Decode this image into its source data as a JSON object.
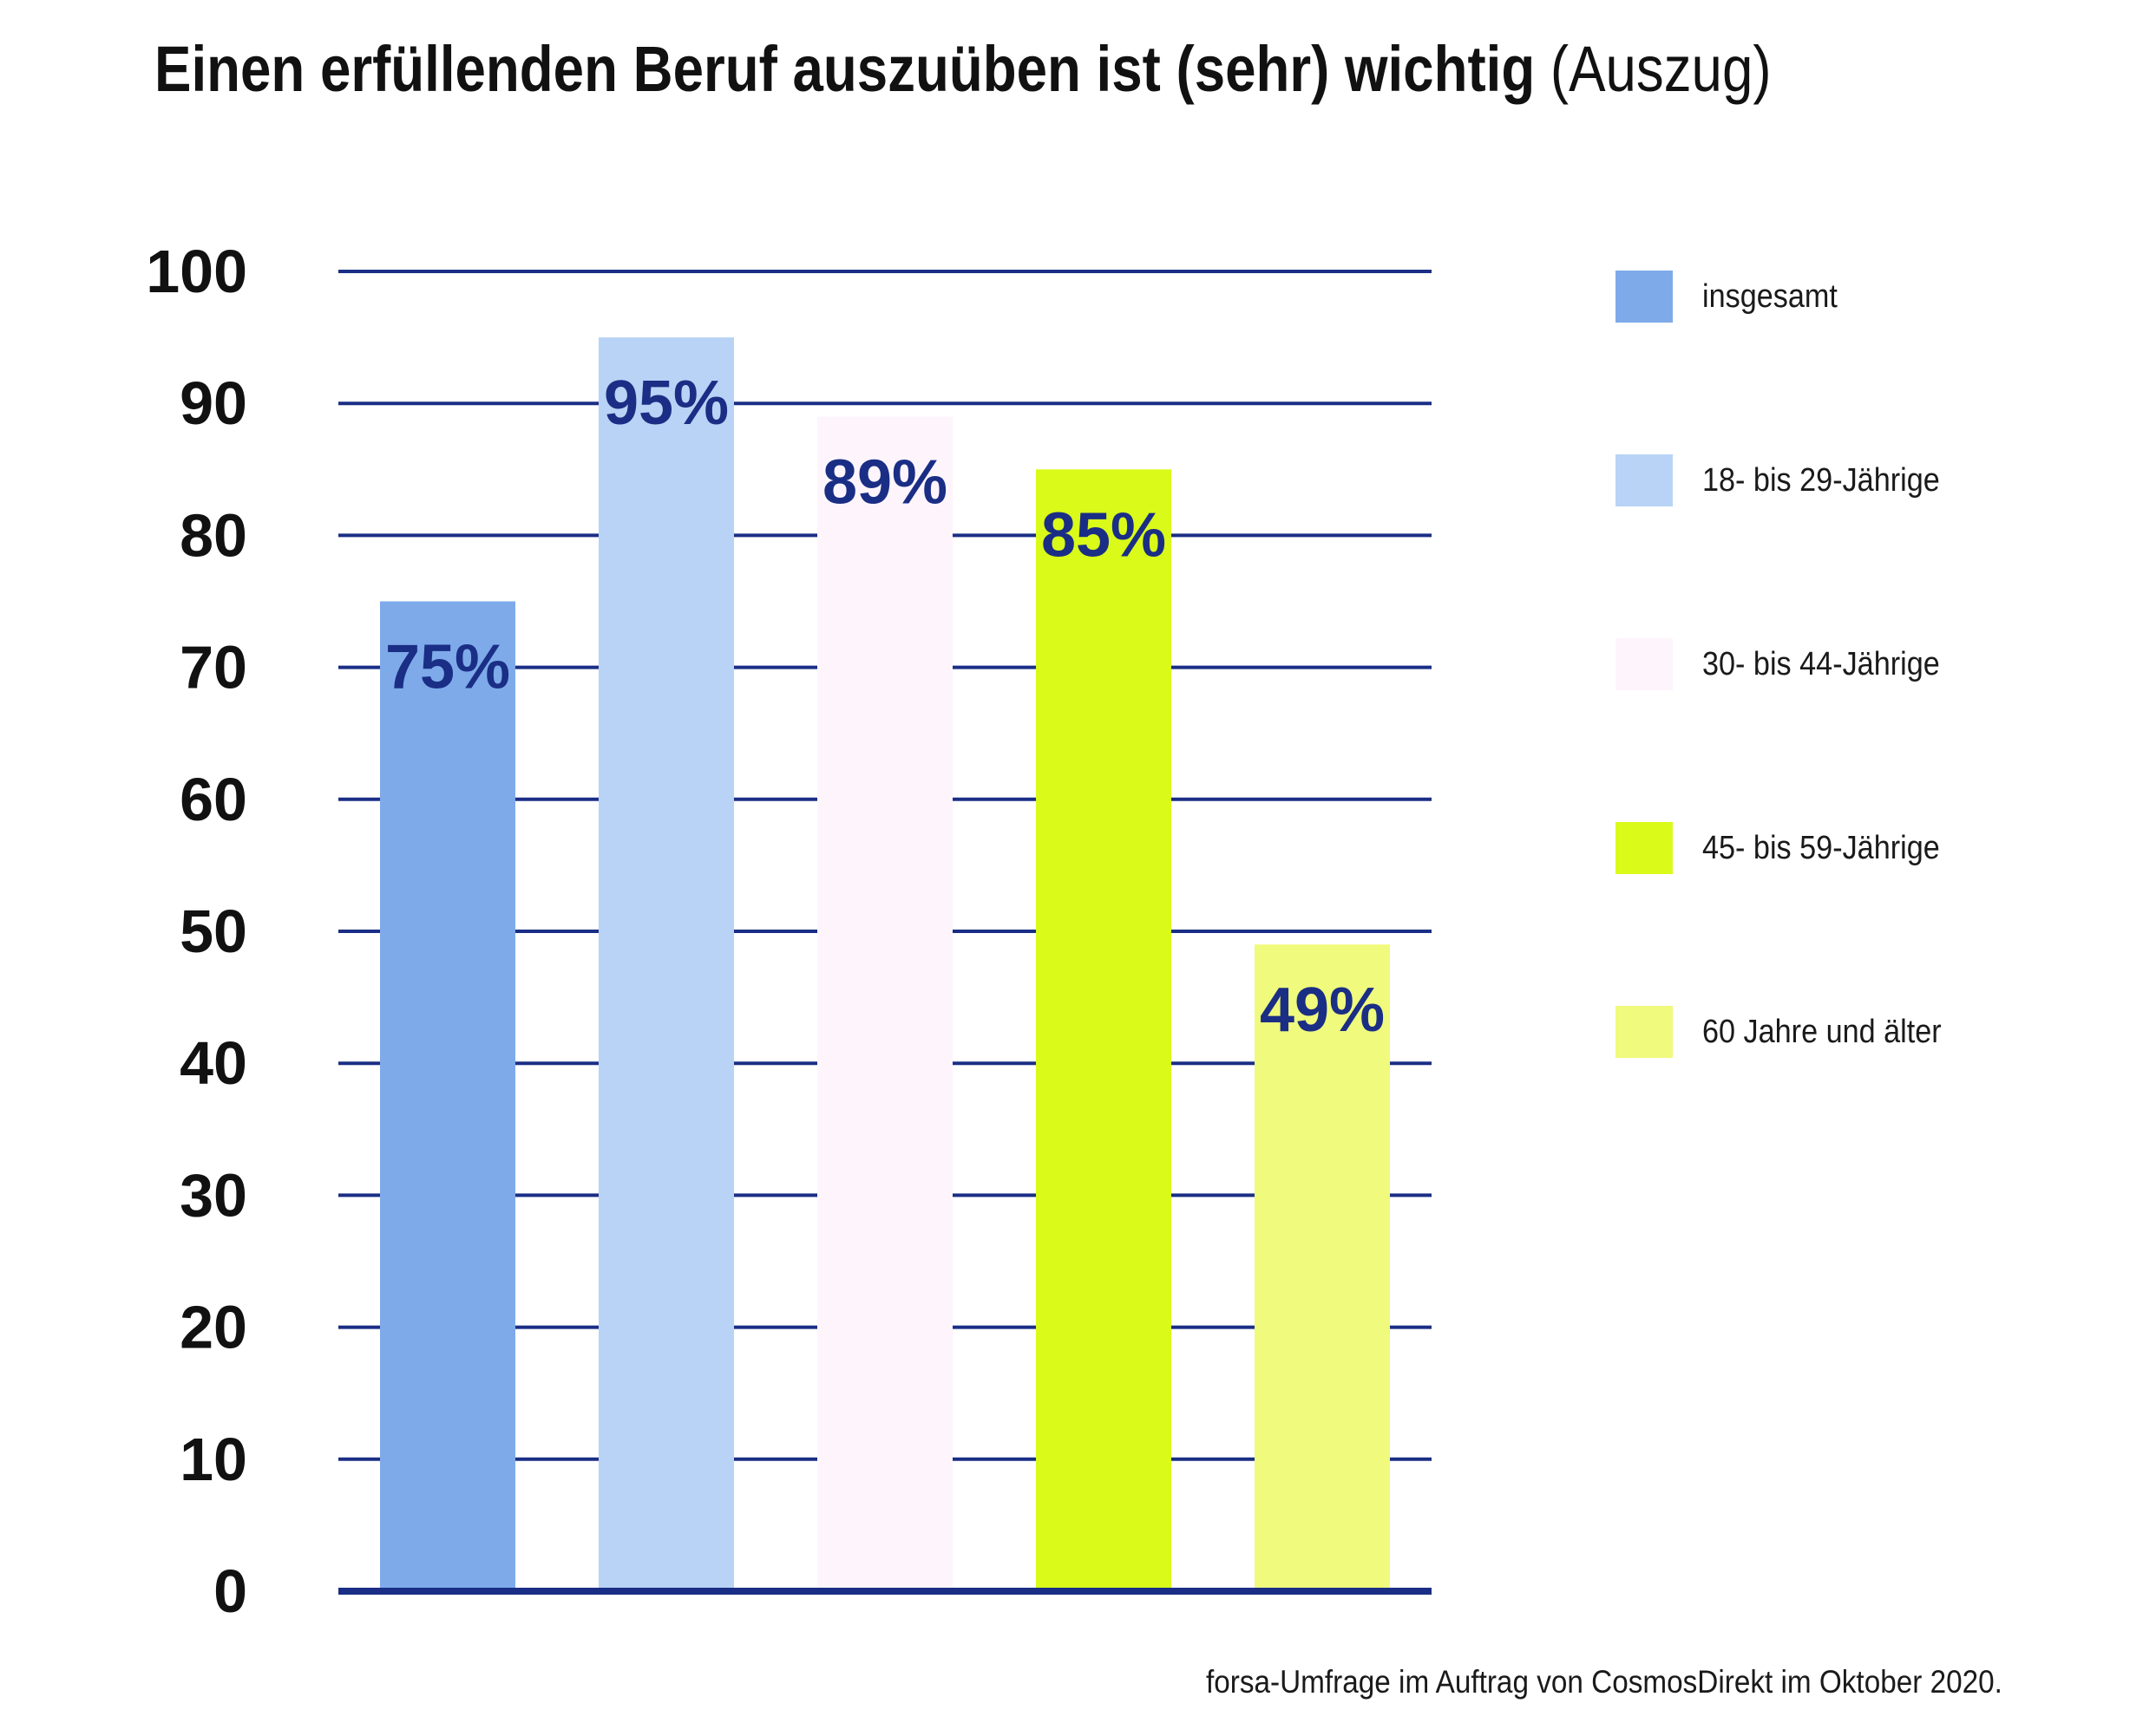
{
  "title": {
    "main": "Einen erfüllenden Beruf auszuüben ist (sehr) wichtig",
    "sub": "(Auszug)"
  },
  "source": "forsa-Umfrage im Auftrag von CosmosDirekt im Oktober 2020.",
  "colors": {
    "grid": "#1a2e85",
    "label": "#1a2e85",
    "axis_text": "#111111"
  },
  "chart_data": {
    "type": "bar",
    "title": "Einen erfüllenden Beruf auszuüben ist (sehr) wichtig (Auszug)",
    "ylim": [
      0,
      100
    ],
    "y_ticks": [
      0,
      10,
      20,
      30,
      40,
      50,
      60,
      70,
      80,
      90,
      100
    ],
    "grid": true,
    "legend_position": "right",
    "categories": [
      "insgesamt",
      "18- bis 29-Jährige",
      "30- bis 44-Jährige",
      "45- bis 59-Jährige",
      "60 Jahre und älter"
    ],
    "values": [
      75,
      95,
      89,
      85,
      49
    ],
    "value_labels": [
      "75%",
      "95%",
      "89%",
      "85%",
      "49%"
    ],
    "bar_colors": [
      "#7eaaea",
      "#b8d3f5",
      "#fdf5fb",
      "#dafa1a",
      "#f0fa7c"
    ]
  }
}
